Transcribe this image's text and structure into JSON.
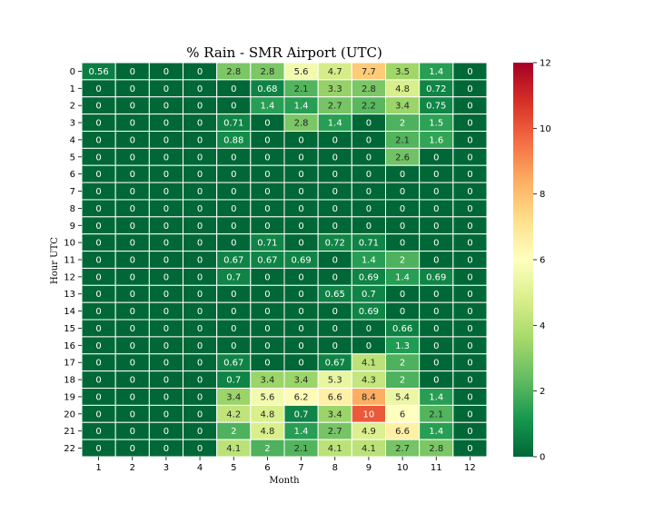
{
  "chart_data": {
    "type": "heatmap",
    "title": "% Rain - SMR Airport (UTC)",
    "xlabel": "Month",
    "ylabel": "Hour UTC",
    "x": [
      "1",
      "2",
      "3",
      "4",
      "5",
      "6",
      "7",
      "8",
      "9",
      "10",
      "11",
      "12"
    ],
    "y": [
      "0",
      "1",
      "2",
      "3",
      "4",
      "5",
      "6",
      "7",
      "8",
      "9",
      "10",
      "11",
      "12",
      "13",
      "14",
      "15",
      "16",
      "17",
      "18",
      "19",
      "20",
      "21",
      "22"
    ],
    "values": [
      [
        0.56,
        0,
        0,
        0,
        2.8,
        2.8,
        5.6,
        4.7,
        7.7,
        3.5,
        1.4,
        0
      ],
      [
        0,
        0,
        0,
        0,
        0,
        0.68,
        2.1,
        3.3,
        2.8,
        4.8,
        0.72,
        0
      ],
      [
        0,
        0,
        0,
        0,
        0,
        1.4,
        1.4,
        2.7,
        2.2,
        3.4,
        0.75,
        0
      ],
      [
        0,
        0,
        0,
        0,
        0.71,
        0,
        2.8,
        1.4,
        0,
        2,
        1.5,
        0
      ],
      [
        0,
        0,
        0,
        0,
        0.88,
        0,
        0,
        0,
        0,
        2.1,
        1.6,
        0
      ],
      [
        0,
        0,
        0,
        0,
        0,
        0,
        0,
        0,
        0,
        2.6,
        0,
        0
      ],
      [
        0,
        0,
        0,
        0,
        0,
        0,
        0,
        0,
        0,
        0,
        0,
        0
      ],
      [
        0,
        0,
        0,
        0,
        0,
        0,
        0,
        0,
        0,
        0,
        0,
        0
      ],
      [
        0,
        0,
        0,
        0,
        0,
        0,
        0,
        0,
        0,
        0,
        0,
        0
      ],
      [
        0,
        0,
        0,
        0,
        0,
        0,
        0,
        0,
        0,
        0,
        0,
        0
      ],
      [
        0,
        0,
        0,
        0,
        0,
        0.71,
        0,
        0.72,
        0.71,
        0,
        0,
        0
      ],
      [
        0,
        0,
        0,
        0,
        0.67,
        0.67,
        0.69,
        0,
        1.4,
        2,
        0,
        0
      ],
      [
        0,
        0,
        0,
        0,
        0.7,
        0,
        0,
        0,
        0.69,
        1.4,
        0.69,
        0
      ],
      [
        0,
        0,
        0,
        0,
        0,
        0,
        0,
        0.65,
        0.7,
        0,
        0,
        0
      ],
      [
        0,
        0,
        0,
        0,
        0,
        0,
        0,
        0,
        0.69,
        0,
        0,
        0
      ],
      [
        0,
        0,
        0,
        0,
        0,
        0,
        0,
        0,
        0,
        0.66,
        0,
        0
      ],
      [
        0,
        0,
        0,
        0,
        0,
        0,
        0,
        0,
        0,
        1.3,
        0,
        0
      ],
      [
        0,
        0,
        0,
        0,
        0.67,
        0,
        0,
        0.67,
        4.1,
        2,
        0,
        0
      ],
      [
        0,
        0,
        0,
        0,
        0.7,
        3.4,
        3.4,
        5.3,
        4.3,
        2,
        0,
        0
      ],
      [
        0,
        0,
        0,
        0,
        3.4,
        5.6,
        6.2,
        6.6,
        8.4,
        5.4,
        1.4,
        0
      ],
      [
        0,
        0,
        0,
        0,
        4.2,
        4.8,
        0.7,
        3.4,
        10,
        6,
        2.1,
        0
      ],
      [
        0,
        0,
        0,
        0,
        2,
        4.8,
        1.4,
        2.7,
        4.9,
        6.6,
        1.4,
        0
      ],
      [
        0,
        0,
        0,
        0,
        4.1,
        2,
        2.1,
        4.1,
        4.1,
        2.7,
        2.8,
        0
      ]
    ],
    "colorbar": {
      "colormap": "RdYlGn_r",
      "min": 0,
      "max": 12,
      "ticks": [
        0,
        2,
        4,
        6,
        8,
        10,
        12
      ]
    },
    "grid": false,
    "legend": "colorbar-right"
  }
}
